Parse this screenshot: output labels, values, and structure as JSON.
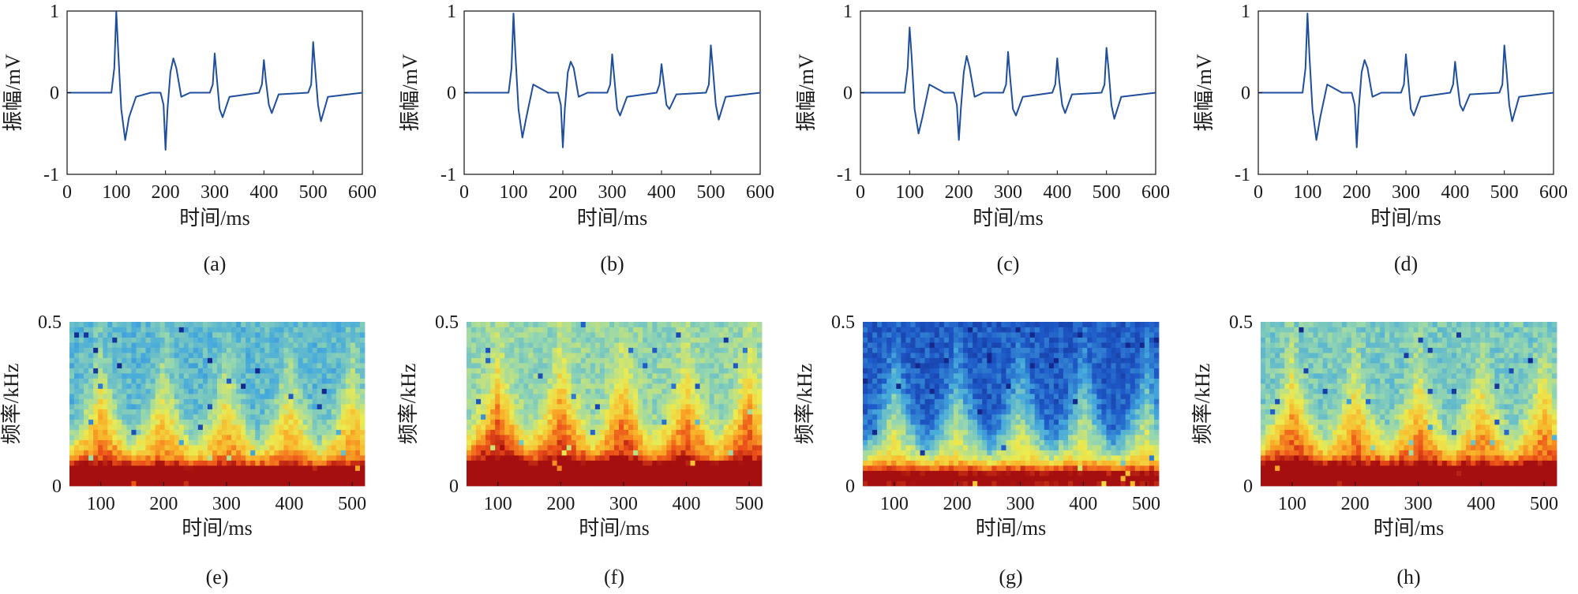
{
  "figure": {
    "colors": {
      "trace": "#1f4e9c",
      "axis": "#111111"
    }
  },
  "chart_data": [
    {
      "type": "line",
      "panel": "(a)",
      "xlabel": "时间/ms",
      "ylabel": "振幅/mV",
      "xlim": [
        0,
        600
      ],
      "ylim": [
        -1,
        1
      ],
      "xticks": [
        "0",
        "100",
        "200",
        "300",
        "400",
        "500",
        "600"
      ],
      "yticks": [
        "-1",
        "0",
        "1"
      ],
      "series": [
        {
          "x": [
            0,
            90,
            96,
            100,
            104,
            110,
            118,
            126,
            140,
            170,
            190,
            196,
            200,
            204,
            210,
            216,
            222,
            232,
            250,
            290,
            296,
            300,
            304,
            310,
            316,
            330,
            390,
            396,
            400,
            404,
            410,
            416,
            430,
            490,
            496,
            500,
            504,
            510,
            516,
            530,
            600
          ],
          "values": [
            0,
            0,
            0.3,
            1,
            0.5,
            -0.2,
            -0.58,
            -0.3,
            -0.05,
            0,
            0,
            -0.15,
            -0.7,
            -0.2,
            0.25,
            0.42,
            0.3,
            -0.05,
            0,
            0,
            0.1,
            0.48,
            0.2,
            -0.2,
            -0.3,
            -0.05,
            0,
            0.1,
            0.4,
            0.15,
            -0.15,
            -0.25,
            -0.02,
            0,
            0.1,
            0.62,
            0.3,
            -0.15,
            -0.35,
            -0.05,
            0
          ]
        }
      ]
    },
    {
      "type": "line",
      "panel": "(b)",
      "xlabel": "时间/ms",
      "ylabel": "振幅/mV",
      "xlim": [
        0,
        600
      ],
      "ylim": [
        -1,
        1
      ],
      "xticks": [
        "0",
        "100",
        "200",
        "300",
        "400",
        "500",
        "600"
      ],
      "yticks": [
        "-1",
        "0",
        "1"
      ],
      "series": [
        {
          "x": [
            0,
            90,
            96,
            100,
            104,
            110,
            118,
            126,
            140,
            170,
            190,
            196,
            200,
            204,
            210,
            216,
            222,
            232,
            250,
            290,
            296,
            300,
            304,
            310,
            316,
            330,
            390,
            396,
            400,
            404,
            410,
            416,
            430,
            490,
            496,
            500,
            504,
            510,
            516,
            530,
            600
          ],
          "values": [
            0,
            0,
            0.3,
            0.97,
            0.45,
            -0.2,
            -0.55,
            -0.3,
            0.1,
            0,
            0,
            -0.15,
            -0.67,
            -0.2,
            0.25,
            0.38,
            0.3,
            -0.05,
            0,
            0,
            0.1,
            0.47,
            0.2,
            -0.2,
            -0.28,
            -0.05,
            0,
            0.1,
            0.35,
            0.15,
            -0.15,
            -0.2,
            -0.02,
            0,
            0.1,
            0.58,
            0.3,
            -0.15,
            -0.33,
            -0.05,
            0
          ]
        }
      ]
    },
    {
      "type": "line",
      "panel": "(c)",
      "xlabel": "时间/ms",
      "ylabel": "振幅/mV",
      "xlim": [
        0,
        600
      ],
      "ylim": [
        -1,
        1
      ],
      "xticks": [
        "0",
        "100",
        "200",
        "300",
        "400",
        "500",
        "600"
      ],
      "yticks": [
        "-1",
        "0",
        "1"
      ],
      "series": [
        {
          "x": [
            0,
            90,
            96,
            100,
            104,
            110,
            118,
            126,
            140,
            170,
            190,
            196,
            200,
            204,
            210,
            216,
            222,
            232,
            250,
            290,
            296,
            300,
            304,
            310,
            316,
            330,
            390,
            396,
            400,
            404,
            410,
            416,
            430,
            490,
            496,
            500,
            504,
            510,
            516,
            530,
            600
          ],
          "values": [
            0,
            0,
            0.3,
            0.8,
            0.45,
            -0.2,
            -0.5,
            -0.3,
            0.1,
            0,
            0,
            -0.15,
            -0.58,
            -0.2,
            0.25,
            0.45,
            0.3,
            -0.05,
            0,
            0,
            0.1,
            0.5,
            0.2,
            -0.2,
            -0.28,
            -0.05,
            0,
            0.1,
            0.42,
            0.15,
            -0.15,
            -0.25,
            -0.02,
            0,
            0.1,
            0.55,
            0.3,
            -0.15,
            -0.32,
            -0.05,
            0
          ]
        }
      ]
    },
    {
      "type": "line",
      "panel": "(d)",
      "xlabel": "时间/ms",
      "ylabel": "振幅/mV",
      "xlim": [
        0,
        600
      ],
      "ylim": [
        -1,
        1
      ],
      "xticks": [
        "0",
        "100",
        "200",
        "300",
        "400",
        "500",
        "600"
      ],
      "yticks": [
        "-1",
        "0",
        "1"
      ],
      "series": [
        {
          "x": [
            0,
            90,
            96,
            100,
            104,
            110,
            118,
            126,
            140,
            170,
            190,
            196,
            200,
            204,
            210,
            216,
            222,
            232,
            250,
            290,
            296,
            300,
            304,
            310,
            316,
            330,
            390,
            396,
            400,
            404,
            410,
            416,
            430,
            490,
            496,
            500,
            504,
            510,
            516,
            530,
            600
          ],
          "values": [
            0,
            0,
            0.3,
            0.97,
            0.45,
            -0.2,
            -0.58,
            -0.3,
            0.1,
            0,
            0,
            -0.15,
            -0.67,
            -0.2,
            0.25,
            0.4,
            0.3,
            -0.05,
            0,
            0,
            0.1,
            0.47,
            0.2,
            -0.2,
            -0.28,
            -0.05,
            0,
            0.1,
            0.38,
            0.15,
            -0.15,
            -0.22,
            -0.02,
            0,
            0.1,
            0.58,
            0.3,
            -0.15,
            -0.35,
            -0.05,
            0
          ]
        }
      ]
    },
    {
      "type": "heatmap",
      "panel": "(e)",
      "xlabel": "时间/ms",
      "ylabel": "频率/kHz",
      "xlim": [
        50,
        520
      ],
      "ylim": [
        0,
        0.5
      ],
      "xticks": [
        "100",
        "200",
        "300",
        "400",
        "500"
      ],
      "yticks": [
        "0",
        "0.5"
      ],
      "beats_ms": [
        100,
        200,
        300,
        400,
        500
      ],
      "band_intensity": [
        0.95,
        0.85,
        0.85,
        0.8,
        0.85
      ],
      "background": 0.35
    },
    {
      "type": "heatmap",
      "panel": "(f)",
      "xlabel": "时间/ms",
      "ylabel": "频率/kHz",
      "xlim": [
        50,
        520
      ],
      "ylim": [
        0,
        0.5
      ],
      "xticks": [
        "100",
        "200",
        "300",
        "400",
        "500"
      ],
      "yticks": [
        "0",
        "0.5"
      ],
      "beats_ms": [
        100,
        200,
        300,
        400,
        500
      ],
      "band_intensity": [
        1.0,
        0.95,
        0.9,
        0.85,
        0.9
      ],
      "background": 0.45
    },
    {
      "type": "heatmap",
      "panel": "(g)",
      "xlabel": "时间/ms",
      "ylabel": "频率/kHz",
      "xlim": [
        50,
        520
      ],
      "ylim": [
        0,
        0.5
      ],
      "xticks": [
        "100",
        "200",
        "300",
        "400",
        "500"
      ],
      "yticks": [
        "0",
        "0.5"
      ],
      "beats_ms": [
        100,
        200,
        300,
        400,
        500
      ],
      "band_intensity": [
        0.9,
        0.85,
        0.85,
        0.85,
        0.85
      ],
      "background": 0.15
    },
    {
      "type": "heatmap",
      "panel": "(h)",
      "xlabel": "时间/ms",
      "ylabel": "频率/kHz",
      "xlim": [
        50,
        520
      ],
      "ylim": [
        0,
        0.5
      ],
      "xticks": [
        "100",
        "200",
        "300",
        "400",
        "500"
      ],
      "yticks": [
        "0",
        "0.5"
      ],
      "beats_ms": [
        100,
        200,
        300,
        400,
        500
      ],
      "band_intensity": [
        0.95,
        0.85,
        0.85,
        0.8,
        0.85
      ],
      "background": 0.4
    }
  ]
}
